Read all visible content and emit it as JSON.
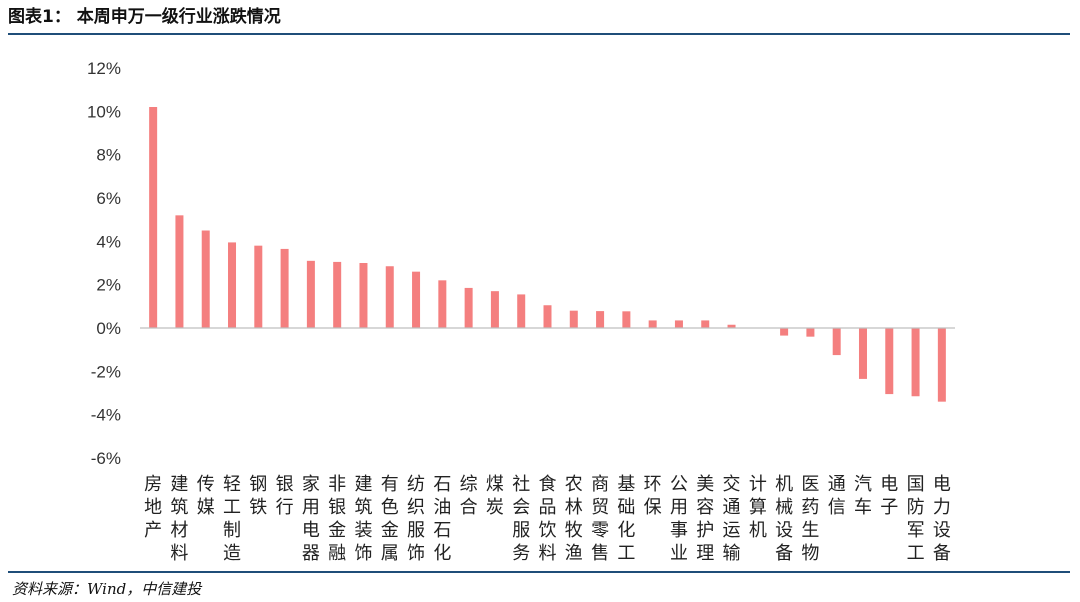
{
  "header": {
    "title": "图表1： 本周申万一级行业涨跌情况"
  },
  "footer": {
    "source": "资料来源：Wind，中信建投"
  },
  "colors": {
    "bar": "#f47f7f",
    "rule": "#1f4e79",
    "axis": "#bfbfbf"
  },
  "chart_data": {
    "type": "bar",
    "title": "",
    "xlabel": "",
    "ylabel": "",
    "ylim": [
      -6,
      12
    ],
    "yticks": [
      -6,
      -4,
      -2,
      0,
      2,
      4,
      6,
      8,
      10,
      12
    ],
    "ytick_labels": [
      "-6%",
      "-4%",
      "-2%",
      "0%",
      "2%",
      "4%",
      "6%",
      "8%",
      "10%",
      "12%"
    ],
    "grid": false,
    "legend": "none",
    "categories": [
      "房地产",
      "建筑材料",
      "传媒",
      "轻工制造",
      "钢铁",
      "银行",
      "家用电器",
      "非银金融",
      "建筑装饰",
      "有色金属",
      "纺织服饰",
      "石油石化",
      "综合",
      "煤炭",
      "社会服务",
      "食品饮料",
      "农林牧渔",
      "商贸零售",
      "基础化工",
      "环保",
      "公用事业",
      "美容护理",
      "交通运输",
      "计算机",
      "机械设备",
      "医药生物",
      "通信",
      "汽车",
      "电子",
      "国防军工",
      "电力设备"
    ],
    "values": [
      10.2,
      5.2,
      4.5,
      3.95,
      3.8,
      3.65,
      3.1,
      3.05,
      3.0,
      2.85,
      2.6,
      2.2,
      1.85,
      1.7,
      1.55,
      1.05,
      0.8,
      0.78,
      0.77,
      0.35,
      0.35,
      0.35,
      0.15,
      0.02,
      -0.35,
      -0.4,
      -1.25,
      -2.35,
      -3.05,
      -3.15,
      -3.4
    ]
  }
}
